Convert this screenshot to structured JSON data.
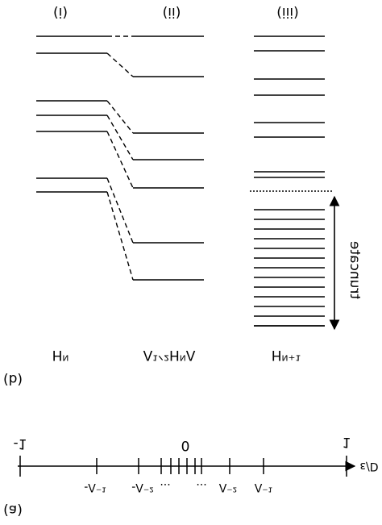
{
  "panel_b": {
    "columns": [
      "(i)",
      "(ii)",
      "(iii)"
    ],
    "bottom_labels": [
      "Hᴺ",
      "Λ¹ᐟ²HᴺΛ",
      "Hᴺ⁺¹"
    ],
    "arrow_label": "truncate",
    "panel_label": "(b)"
  },
  "panel_a": {
    "left_end": "-1",
    "right_end": "1",
    "center": "0",
    "tick_labels": [
      "-Λ⁻¹",
      "-Λ⁻²",
      "...",
      "...",
      "Λ⁻²",
      "Λ⁻¹"
    ],
    "axis_label": "ε/D",
    "panel_label": "(a)"
  }
}
